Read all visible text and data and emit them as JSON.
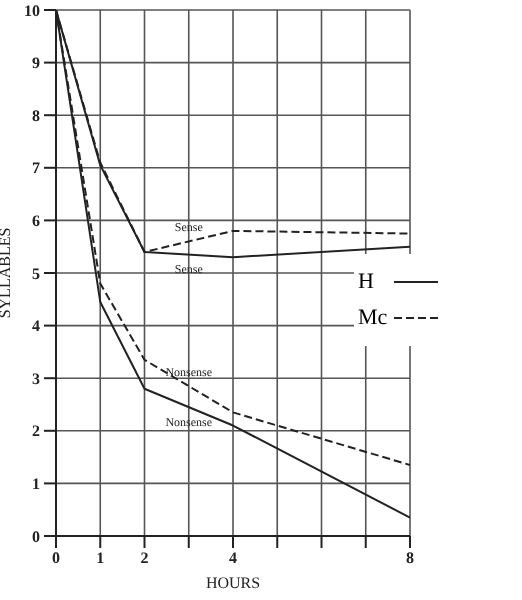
{
  "chart_data": {
    "type": "line",
    "xlabel": "HOURS",
    "ylabel": "SYLLABLES",
    "x": [
      0,
      1,
      2,
      4,
      8
    ],
    "series": [
      {
        "name": "H",
        "color": "#222222",
        "line_style": "solid",
        "values": [
          10,
          7.05,
          5.4,
          5.3,
          5.5
        ]
      },
      {
        "name": "Mc",
        "color": "#222222",
        "line_style": "dashed",
        "values": [
          10,
          7.1,
          5.4,
          5.8,
          5.75
        ]
      },
      {
        "color": "#222222",
        "line_style": "solid",
        "values": [
          10,
          4.45,
          2.8,
          2.1,
          0.35
        ]
      },
      {
        "color": "#222222",
        "line_style": "dashed",
        "values": [
          10,
          4.8,
          3.35,
          2.35,
          1.35
        ]
      }
    ],
    "xlim": [
      0,
      8
    ],
    "xticks": [
      0,
      1,
      2,
      {
        "value": 3,
        "label": null
      },
      4,
      {
        "value": 5,
        "label": null
      },
      {
        "value": 6,
        "label": null
      },
      {
        "value": 7,
        "label": null
      },
      8
    ],
    "ylim": [
      0,
      10
    ],
    "yticks": [
      0,
      1,
      2,
      3,
      4,
      5,
      6,
      7,
      8,
      9,
      10
    ],
    "grid": true,
    "legend": "right",
    "marker": "none",
    "annotations": [
      "Sense",
      "Sense",
      "Nonsense",
      "Nonsense"
    ]
  }
}
